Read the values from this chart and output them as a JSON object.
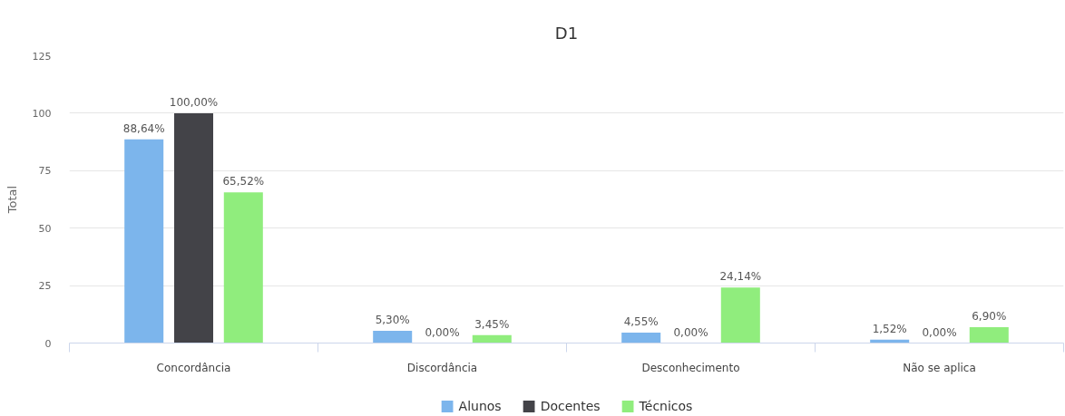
{
  "chart_data": {
    "type": "bar",
    "title": "D1",
    "ylabel": "Total",
    "categories": [
      "Concordância",
      "Discordância",
      "Desconhecimento",
      "Não se aplica"
    ],
    "series": [
      {
        "name": "Alunos",
        "color": "#7cb5ec",
        "values": [
          88.64,
          5.3,
          4.55,
          1.52
        ],
        "value_labels": [
          "88,64%",
          "5,30%",
          "4,55%",
          "1,52%"
        ]
      },
      {
        "name": "Docentes",
        "color": "#434348",
        "values": [
          100.0,
          0.0,
          0.0,
          0.0
        ],
        "value_labels": [
          "100,00%",
          "0,00%",
          "0,00%",
          "0,00%"
        ]
      },
      {
        "name": "Técnicos",
        "color": "#90ed7d",
        "values": [
          65.52,
          3.45,
          24.14,
          6.9
        ],
        "value_labels": [
          "65,52%",
          "3,45%",
          "24,14%",
          "6,90%"
        ]
      }
    ],
    "ylim": [
      0,
      125
    ],
    "yticks": [
      0,
      25,
      50,
      75,
      100,
      125
    ],
    "grid": "y",
    "legend": "bottom"
  }
}
